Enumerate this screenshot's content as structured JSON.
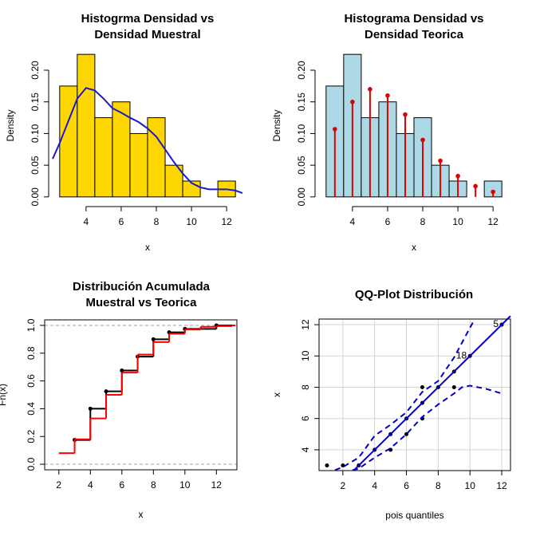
{
  "chart_data": [
    {
      "type": "histogram",
      "title": [
        "Histogrma Densidad vs",
        "Densidad Muestral"
      ],
      "x_label": "x",
      "y_label": "Density",
      "bins": [
        2.5,
        3.5,
        4.5,
        5.5,
        6.5,
        7.5,
        8.5,
        9.5,
        10.5,
        11.5,
        12.5
      ],
      "values": [
        0.175,
        0.225,
        0.125,
        0.15,
        0.1,
        0.125,
        0.05,
        0.025,
        0,
        0.025
      ],
      "color": "#ffd700",
      "xlim": [
        2.1,
        12.9
      ],
      "ylim": [
        -0.009,
        0.234
      ],
      "xticks": [
        4,
        6,
        8,
        10,
        12
      ],
      "yticks": [
        {
          "value": 0,
          "label": "0.00"
        },
        {
          "value": 0.05,
          "label": "0.05"
        },
        {
          "value": 0.1,
          "label": "0.10"
        },
        {
          "value": 0.15,
          "label": "0.15"
        },
        {
          "value": 0.2,
          "label": "0.20"
        }
      ],
      "series": [
        {
          "kind": "line",
          "color": "#1a1acd",
          "x": [
            2.1,
            2.5,
            3,
            3.5,
            4,
            4.5,
            5,
            5.5,
            6,
            6.5,
            7,
            7.5,
            8,
            8.5,
            9,
            9.5,
            10,
            10.5,
            11,
            11.5,
            12,
            12.5,
            12.9
          ],
          "values": [
            0.06,
            0.085,
            0.12,
            0.155,
            0.172,
            0.168,
            0.155,
            0.14,
            0.133,
            0.125,
            0.118,
            0.108,
            0.095,
            0.075,
            0.055,
            0.037,
            0.022,
            0.015,
            0.012,
            0.012,
            0.012,
            0.01,
            0.006
          ]
        }
      ]
    },
    {
      "type": "histogram",
      "title": [
        "Histograma Densidad vs",
        "Densidad Teorica"
      ],
      "x_label": "x",
      "y_label": "Density",
      "bins": [
        2.5,
        3.5,
        4.5,
        5.5,
        6.5,
        7.5,
        8.5,
        9.5,
        10.5,
        11.5,
        12.5
      ],
      "values": [
        0.175,
        0.225,
        0.125,
        0.15,
        0.1,
        0.125,
        0.05,
        0.025,
        0,
        0.025
      ],
      "color": "#add8e6",
      "xlim": [
        2.1,
        12.9
      ],
      "ylim": [
        -0.009,
        0.234
      ],
      "xticks": [
        4,
        6,
        8,
        10,
        12
      ],
      "yticks": [
        {
          "value": 0,
          "label": "0.00"
        },
        {
          "value": 0.05,
          "label": "0.05"
        },
        {
          "value": 0.1,
          "label": "0.10"
        },
        {
          "value": 0.15,
          "label": "0.15"
        },
        {
          "value": 0.2,
          "label": "0.20"
        }
      ],
      "series": [
        {
          "kind": "lollipop",
          "color": "#e00000",
          "x": [
            3,
            4,
            5,
            6,
            7,
            8,
            9,
            10,
            11,
            12
          ],
          "values": [
            0.107,
            0.15,
            0.17,
            0.16,
            0.13,
            0.09,
            0.057,
            0.033,
            0.017,
            0.008
          ]
        }
      ]
    },
    {
      "type": "step",
      "title": [
        "Distribución Acumulada",
        "Muestral vs Teorica"
      ],
      "x_label": "x",
      "y_label": "Fn(x)",
      "xlim": [
        1.1,
        13.3
      ],
      "ylim": [
        -0.04,
        1.04
      ],
      "xticks": [
        2,
        4,
        6,
        8,
        10,
        12
      ],
      "yticks": [
        {
          "value": 0,
          "label": "0.0"
        },
        {
          "value": 0.2,
          "label": "0.2"
        },
        {
          "value": 0.4,
          "label": "0.4"
        },
        {
          "value": 0.6,
          "label": "0.6"
        },
        {
          "value": 0.8,
          "label": "0.8"
        },
        {
          "value": 1,
          "label": "1.0"
        }
      ],
      "hlines": [
        0,
        1
      ],
      "series": [
        {
          "kind": "step",
          "points": true,
          "color": "#000000",
          "x": [
            3,
            4,
            5,
            6,
            7,
            8,
            9,
            10,
            12
          ],
          "values": [
            0.175,
            0.4,
            0.525,
            0.675,
            0.775,
            0.9,
            0.95,
            0.975,
            1
          ]
        },
        {
          "kind": "step",
          "color": "#ff0000",
          "x": [
            2,
            3,
            4,
            5,
            6,
            7,
            8,
            9,
            10,
            11,
            12,
            13
          ],
          "values": [
            0.08,
            0.18,
            0.33,
            0.5,
            0.66,
            0.79,
            0.88,
            0.94,
            0.97,
            0.99,
            0.995,
            1
          ]
        }
      ]
    },
    {
      "type": "scatter",
      "title": [
        "QQ-Plot Distribución"
      ],
      "x_label": "pois quantiles",
      "y_label": "x",
      "grid": true,
      "xlim": [
        0.5,
        12.55
      ],
      "ylim": [
        2.67,
        12.36
      ],
      "xticks": [
        2,
        4,
        6,
        8,
        10,
        12
      ],
      "yticks": [
        4,
        6,
        8,
        10,
        12
      ],
      "series": [
        {
          "kind": "points",
          "color": "#000000",
          "x": [
            1,
            2,
            3,
            4,
            5,
            5,
            6,
            6,
            7,
            7,
            7,
            8,
            9,
            9,
            10,
            12
          ],
          "values": [
            3,
            3,
            3,
            4,
            4,
            5,
            5,
            6,
            6,
            7,
            8,
            8,
            8,
            9,
            10,
            12
          ]
        },
        {
          "kind": "line",
          "color": "#0000cd",
          "x": [
            2.7,
            12.55
          ],
          "values": [
            2.7,
            12.55
          ]
        },
        {
          "kind": "dashed",
          "color": "#0000cd",
          "x": [
            1.5,
            2,
            3,
            4,
            5,
            6,
            7,
            8,
            9,
            10,
            10.3
          ],
          "values": [
            2.7,
            2.9,
            3.5,
            4.9,
            5.6,
            6.4,
            7.7,
            8.4,
            9.9,
            11.8,
            12.36
          ]
        },
        {
          "kind": "dashed",
          "color": "#0000cd",
          "x": [
            2.6,
            3,
            4,
            5,
            6,
            7,
            8,
            9,
            9.5,
            10,
            11,
            12
          ],
          "values": [
            2.7,
            2.8,
            3.5,
            4.1,
            5,
            6.1,
            6.9,
            7.6,
            8,
            8.1,
            7.9,
            7.6
          ]
        }
      ],
      "annotations": [
        {
          "text": "18",
          "x": 10,
          "y": 10
        },
        {
          "text": "5",
          "x": 12,
          "y": 12
        }
      ]
    }
  ]
}
